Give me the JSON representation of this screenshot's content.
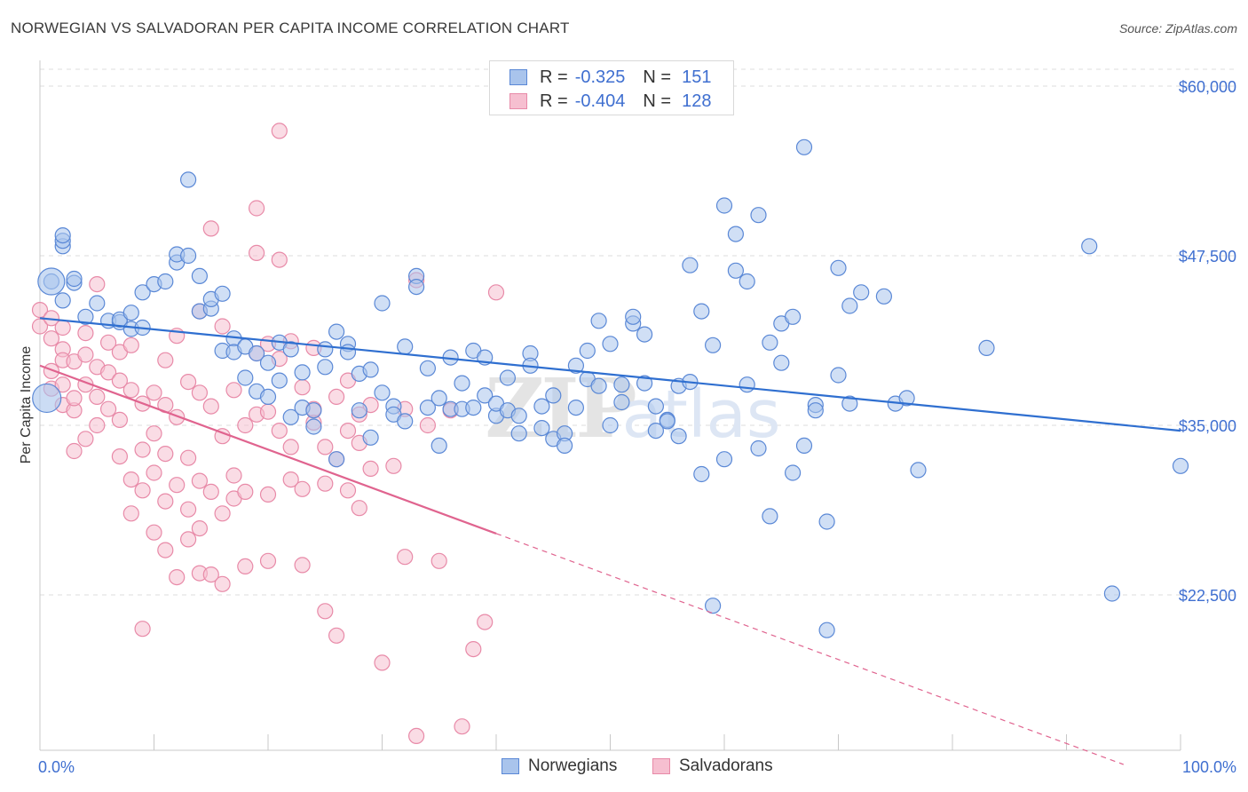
{
  "header": {
    "title": "NORWEGIAN VS SALVADORAN PER CAPITA INCOME CORRELATION CHART",
    "source": "Source: ZipAtlas.com"
  },
  "watermark": {
    "zip": "ZIP",
    "atlas": "atlas"
  },
  "colors": {
    "norwegian_fill": "#a9c4ec",
    "norwegian_stroke": "#5a88d6",
    "norwegian_line": "#2f6fd0",
    "salvadoran_fill": "#f6bfd0",
    "salvadoran_stroke": "#e88aa8",
    "salvadoran_line": "#e0648f",
    "axis_label": "#3f6fd0",
    "grid": "#dcdcdc"
  },
  "legend": {
    "rows": [
      {
        "r_label": "R =",
        "r_value": "-0.325",
        "n_label": "N =",
        "n_value": "151"
      },
      {
        "r_label": "R =",
        "r_value": "-0.404",
        "n_label": "N =",
        "n_value": "128"
      }
    ],
    "series_names": [
      "Norwegians",
      "Salvadorans"
    ]
  },
  "chart_data": {
    "type": "scatter",
    "title": "NORWEGIAN VS SALVADORAN PER CAPITA INCOME CORRELATION CHART",
    "xlabel": "",
    "ylabel": "Per Capita Income",
    "xlim": [
      0,
      100
    ],
    "ylim": [
      10000,
      62500
    ],
    "x_tick_labels": [
      "0.0%",
      "100.0%"
    ],
    "y_ticks": [
      22500,
      35000,
      47500,
      60000
    ],
    "y_tick_labels": [
      "$22,500",
      "$35,000",
      "$47,500",
      "$60,000"
    ],
    "grid": true,
    "legend_position": "top-center",
    "series": [
      {
        "name": "Norwegians",
        "r": -0.325,
        "n": 151,
        "trend": {
          "x": [
            0,
            100
          ],
          "y": [
            42900,
            34600
          ],
          "dashed_from_x": null
        },
        "points": [
          [
            1,
            45600
          ],
          [
            2,
            48200
          ],
          [
            2,
            44200
          ],
          [
            2,
            48600
          ],
          [
            2,
            49000
          ],
          [
            3,
            45500
          ],
          [
            3,
            45800
          ],
          [
            4,
            43000
          ],
          [
            5,
            44000
          ],
          [
            6,
            42700
          ],
          [
            7,
            42600
          ],
          [
            7,
            42800
          ],
          [
            8,
            42100
          ],
          [
            8,
            43300
          ],
          [
            9,
            44800
          ],
          [
            9,
            42200
          ],
          [
            10,
            45400
          ],
          [
            11,
            45600
          ],
          [
            12,
            47000
          ],
          [
            12,
            47600
          ],
          [
            13,
            53100
          ],
          [
            13,
            47500
          ],
          [
            14,
            46000
          ],
          [
            14,
            43400
          ],
          [
            15,
            43600
          ],
          [
            15,
            44300
          ],
          [
            16,
            44700
          ],
          [
            16,
            40500
          ],
          [
            17,
            41400
          ],
          [
            17,
            40400
          ],
          [
            18,
            40800
          ],
          [
            18,
            38500
          ],
          [
            19,
            40300
          ],
          [
            19,
            37500
          ],
          [
            20,
            37100
          ],
          [
            20,
            39600
          ],
          [
            21,
            38300
          ],
          [
            21,
            41100
          ],
          [
            22,
            40600
          ],
          [
            22,
            35600
          ],
          [
            23,
            38900
          ],
          [
            23,
            36300
          ],
          [
            24,
            34900
          ],
          [
            24,
            36100
          ],
          [
            25,
            40600
          ],
          [
            25,
            39300
          ],
          [
            26,
            32500
          ],
          [
            26,
            41900
          ],
          [
            27,
            41000
          ],
          [
            27,
            40400
          ],
          [
            28,
            38800
          ],
          [
            28,
            36100
          ],
          [
            29,
            39100
          ],
          [
            29,
            34100
          ],
          [
            30,
            44000
          ],
          [
            30,
            37400
          ],
          [
            31,
            36400
          ],
          [
            31,
            35800
          ],
          [
            32,
            40800
          ],
          [
            32,
            35300
          ],
          [
            33,
            46000
          ],
          [
            33,
            45200
          ],
          [
            34,
            39200
          ],
          [
            34,
            36300
          ],
          [
            35,
            37000
          ],
          [
            35,
            33500
          ],
          [
            36,
            40000
          ],
          [
            36,
            36200
          ],
          [
            37,
            36200
          ],
          [
            37,
            38100
          ],
          [
            38,
            40500
          ],
          [
            38,
            36300
          ],
          [
            39,
            40000
          ],
          [
            39,
            37200
          ],
          [
            40,
            35700
          ],
          [
            40,
            36600
          ],
          [
            41,
            38500
          ],
          [
            41,
            36100
          ],
          [
            42,
            34400
          ],
          [
            42,
            35700
          ],
          [
            43,
            40300
          ],
          [
            43,
            39400
          ],
          [
            44,
            36400
          ],
          [
            44,
            34800
          ],
          [
            45,
            37200
          ],
          [
            45,
            34000
          ],
          [
            46,
            34400
          ],
          [
            46,
            33500
          ],
          [
            47,
            36300
          ],
          [
            47,
            39400
          ],
          [
            48,
            40500
          ],
          [
            48,
            38400
          ],
          [
            49,
            42700
          ],
          [
            49,
            37900
          ],
          [
            50,
            35000
          ],
          [
            50,
            41000
          ],
          [
            51,
            38000
          ],
          [
            51,
            36700
          ],
          [
            52,
            42500
          ],
          [
            52,
            43000
          ],
          [
            53,
            41700
          ],
          [
            53,
            38100
          ],
          [
            54,
            36400
          ],
          [
            54,
            34600
          ],
          [
            55,
            35400
          ],
          [
            55,
            35300
          ],
          [
            56,
            34200
          ],
          [
            56,
            37900
          ],
          [
            57,
            46800
          ],
          [
            57,
            38200
          ],
          [
            58,
            43400
          ],
          [
            58,
            31400
          ],
          [
            59,
            21700
          ],
          [
            59,
            40900
          ],
          [
            60,
            51200
          ],
          [
            60,
            32500
          ],
          [
            61,
            46400
          ],
          [
            61,
            49100
          ],
          [
            62,
            45600
          ],
          [
            62,
            38000
          ],
          [
            63,
            33300
          ],
          [
            63,
            50500
          ],
          [
            64,
            41100
          ],
          [
            64,
            28300
          ],
          [
            65,
            42500
          ],
          [
            65,
            39600
          ],
          [
            66,
            31500
          ],
          [
            66,
            43000
          ],
          [
            67,
            55500
          ],
          [
            67,
            33500
          ],
          [
            68,
            36500
          ],
          [
            68,
            36100
          ],
          [
            69,
            19900
          ],
          [
            69,
            27900
          ],
          [
            70,
            38700
          ],
          [
            70,
            46600
          ],
          [
            71,
            43800
          ],
          [
            71,
            36600
          ],
          [
            72,
            44800
          ],
          [
            74,
            44500
          ],
          [
            75,
            36600
          ],
          [
            76,
            37000
          ],
          [
            77,
            31700
          ],
          [
            83,
            40700
          ],
          [
            92,
            48200
          ],
          [
            94,
            22600
          ],
          [
            100,
            32000
          ]
        ]
      },
      {
        "name": "Salvadorans",
        "r": -0.404,
        "n": 128,
        "trend": {
          "x": [
            0,
            95
          ],
          "y": [
            39400,
            10000
          ],
          "dashed_from_x": 40
        },
        "points": [
          [
            0,
            43500
          ],
          [
            0,
            42300
          ],
          [
            1,
            42900
          ],
          [
            1,
            41400
          ],
          [
            1,
            39000
          ],
          [
            1,
            37700
          ],
          [
            2,
            42200
          ],
          [
            2,
            40600
          ],
          [
            2,
            39800
          ],
          [
            2,
            38000
          ],
          [
            2,
            36500
          ],
          [
            3,
            36100
          ],
          [
            3,
            39700
          ],
          [
            3,
            37000
          ],
          [
            3,
            33100
          ],
          [
            4,
            41800
          ],
          [
            4,
            40200
          ],
          [
            4,
            38000
          ],
          [
            4,
            34000
          ],
          [
            5,
            45400
          ],
          [
            5,
            39300
          ],
          [
            5,
            37100
          ],
          [
            5,
            35000
          ],
          [
            6,
            41100
          ],
          [
            6,
            38900
          ],
          [
            6,
            36200
          ],
          [
            7,
            40400
          ],
          [
            7,
            38300
          ],
          [
            7,
            35400
          ],
          [
            7,
            32700
          ],
          [
            8,
            40900
          ],
          [
            8,
            37600
          ],
          [
            8,
            31000
          ],
          [
            8,
            28500
          ],
          [
            9,
            36600
          ],
          [
            9,
            33200
          ],
          [
            9,
            30200
          ],
          [
            9,
            20000
          ],
          [
            10,
            37400
          ],
          [
            10,
            34400
          ],
          [
            10,
            31500
          ],
          [
            10,
            27100
          ],
          [
            11,
            39800
          ],
          [
            11,
            36500
          ],
          [
            11,
            32900
          ],
          [
            11,
            29400
          ],
          [
            11,
            25800
          ],
          [
            12,
            41600
          ],
          [
            12,
            35600
          ],
          [
            12,
            30600
          ],
          [
            12,
            23800
          ],
          [
            13,
            38200
          ],
          [
            13,
            32600
          ],
          [
            13,
            28800
          ],
          [
            13,
            26600
          ],
          [
            14,
            43400
          ],
          [
            14,
            37400
          ],
          [
            14,
            30900
          ],
          [
            14,
            27400
          ],
          [
            14,
            24100
          ],
          [
            15,
            49500
          ],
          [
            15,
            36400
          ],
          [
            15,
            30100
          ],
          [
            15,
            24000
          ],
          [
            16,
            42300
          ],
          [
            16,
            34200
          ],
          [
            16,
            28500
          ],
          [
            16,
            23300
          ],
          [
            17,
            37600
          ],
          [
            17,
            31300
          ],
          [
            17,
            29600
          ],
          [
            18,
            35000
          ],
          [
            18,
            30100
          ],
          [
            18,
            24600
          ],
          [
            19,
            51000
          ],
          [
            19,
            47700
          ],
          [
            19,
            40300
          ],
          [
            19,
            35800
          ],
          [
            20,
            41000
          ],
          [
            20,
            36000
          ],
          [
            20,
            29900
          ],
          [
            20,
            25000
          ],
          [
            21,
            47200
          ],
          [
            21,
            56700
          ],
          [
            21,
            39900
          ],
          [
            21,
            34600
          ],
          [
            22,
            41200
          ],
          [
            22,
            33400
          ],
          [
            22,
            31000
          ],
          [
            23,
            37800
          ],
          [
            23,
            30300
          ],
          [
            23,
            24700
          ],
          [
            24,
            40700
          ],
          [
            24,
            35200
          ],
          [
            24,
            36200
          ],
          [
            25,
            33400
          ],
          [
            25,
            30700
          ],
          [
            25,
            21300
          ],
          [
            26,
            37100
          ],
          [
            26,
            32500
          ],
          [
            26,
            19500
          ],
          [
            27,
            38300
          ],
          [
            27,
            34600
          ],
          [
            27,
            30200
          ],
          [
            28,
            35800
          ],
          [
            28,
            33700
          ],
          [
            28,
            28900
          ],
          [
            29,
            36500
          ],
          [
            29,
            31800
          ],
          [
            30,
            17500
          ],
          [
            31,
            32000
          ],
          [
            32,
            36200
          ],
          [
            32,
            25300
          ],
          [
            33,
            45700
          ],
          [
            33,
            12100
          ],
          [
            34,
            35000
          ],
          [
            35,
            25000
          ],
          [
            36,
            36100
          ],
          [
            37,
            12800
          ],
          [
            38,
            18500
          ],
          [
            39,
            20500
          ],
          [
            40,
            44800
          ]
        ]
      }
    ]
  }
}
